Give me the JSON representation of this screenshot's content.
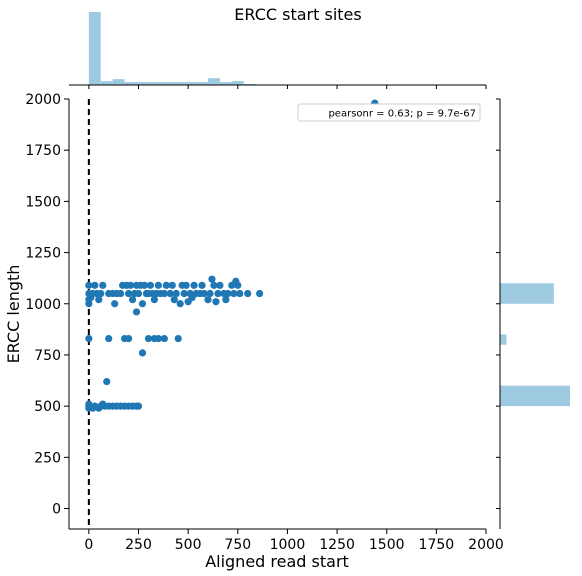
{
  "chart_data": {
    "type": "scatter",
    "title": "ERCC start sites",
    "xlabel": "Aligned read start",
    "ylabel": "ERCC length",
    "xlim": [
      -100,
      2000
    ],
    "ylim": [
      -100,
      2000
    ],
    "xticks": [
      0,
      250,
      500,
      750,
      1000,
      1250,
      1500,
      1750,
      2000
    ],
    "yticks": [
      0,
      250,
      500,
      750,
      1000,
      1250,
      1500,
      1750,
      2000
    ],
    "annotation": "pearsonr = 0.63; p = 9.7e-67",
    "reference_line": {
      "orientation": "vertical",
      "x": 0,
      "style": "dashed",
      "color": "#000000"
    },
    "grid": false,
    "legend_position": "top-right",
    "point_color": "#1f77b4",
    "marginal_color": "#9ecae1",
    "points": [
      [
        0,
        1000
      ],
      [
        0,
        1020
      ],
      [
        0,
        1050
      ],
      [
        0,
        1090
      ],
      [
        10,
        1030
      ],
      [
        20,
        1050
      ],
      [
        30,
        1090
      ],
      [
        40,
        1050
      ],
      [
        50,
        1020
      ],
      [
        60,
        1050
      ],
      [
        70,
        1090
      ],
      [
        100,
        1050
      ],
      [
        120,
        1050
      ],
      [
        130,
        1000
      ],
      [
        140,
        1050
      ],
      [
        160,
        1050
      ],
      [
        170,
        1090
      ],
      [
        190,
        1090
      ],
      [
        200,
        1050
      ],
      [
        210,
        1090
      ],
      [
        220,
        1020
      ],
      [
        230,
        1050
      ],
      [
        240,
        1090
      ],
      [
        250,
        1050
      ],
      [
        260,
        1090
      ],
      [
        270,
        1000
      ],
      [
        280,
        1090
      ],
      [
        290,
        1050
      ],
      [
        300,
        1050
      ],
      [
        310,
        1090
      ],
      [
        320,
        1050
      ],
      [
        330,
        1020
      ],
      [
        340,
        1050
      ],
      [
        350,
        1090
      ],
      [
        360,
        1050
      ],
      [
        380,
        1050
      ],
      [
        390,
        1090
      ],
      [
        410,
        1050
      ],
      [
        420,
        1090
      ],
      [
        430,
        1020
      ],
      [
        440,
        1050
      ],
      [
        460,
        1000
      ],
      [
        470,
        1090
      ],
      [
        480,
        1050
      ],
      [
        490,
        1090
      ],
      [
        500,
        1010
      ],
      [
        510,
        1050
      ],
      [
        520,
        1030
      ],
      [
        530,
        1090
      ],
      [
        540,
        1050
      ],
      [
        560,
        1050
      ],
      [
        570,
        1090
      ],
      [
        580,
        1050
      ],
      [
        600,
        1020
      ],
      [
        610,
        1050
      ],
      [
        620,
        1120
      ],
      [
        630,
        1090
      ],
      [
        640,
        1010
      ],
      [
        650,
        1050
      ],
      [
        660,
        1090
      ],
      [
        680,
        1050
      ],
      [
        690,
        1020
      ],
      [
        700,
        1050
      ],
      [
        720,
        1090
      ],
      [
        730,
        1050
      ],
      [
        740,
        1110
      ],
      [
        750,
        1090
      ],
      [
        760,
        1050
      ],
      [
        800,
        1050
      ],
      [
        860,
        1050
      ],
      [
        240,
        960
      ],
      [
        0,
        830
      ],
      [
        100,
        830
      ],
      [
        180,
        830
      ],
      [
        200,
        830
      ],
      [
        270,
        760
      ],
      [
        300,
        830
      ],
      [
        330,
        830
      ],
      [
        350,
        830
      ],
      [
        380,
        830
      ],
      [
        450,
        830
      ],
      [
        90,
        620
      ],
      [
        0,
        490
      ],
      [
        0,
        500
      ],
      [
        0,
        510
      ],
      [
        20,
        490
      ],
      [
        30,
        500
      ],
      [
        50,
        490
      ],
      [
        60,
        500
      ],
      [
        70,
        510
      ],
      [
        80,
        500
      ],
      [
        100,
        500
      ],
      [
        120,
        500
      ],
      [
        140,
        500
      ],
      [
        160,
        500
      ],
      [
        180,
        500
      ],
      [
        200,
        500
      ],
      [
        220,
        500
      ],
      [
        240,
        500
      ],
      [
        250,
        500
      ],
      [
        1440,
        1980
      ]
    ],
    "marginal_x": {
      "bins": [
        [
          0,
          60
        ],
        [
          60,
          120
        ],
        [
          120,
          180
        ],
        [
          180,
          240
        ],
        [
          240,
          300
        ],
        [
          300,
          360
        ],
        [
          360,
          420
        ],
        [
          420,
          480
        ],
        [
          480,
          540
        ],
        [
          540,
          600
        ],
        [
          600,
          660
        ],
        [
          660,
          720
        ],
        [
          720,
          780
        ],
        [
          780,
          840
        ],
        [
          840,
          900
        ]
      ],
      "counts": [
        150,
        8,
        12,
        6,
        6,
        6,
        6,
        6,
        6,
        6,
        14,
        6,
        8,
        2,
        1
      ]
    },
    "marginal_y": {
      "bins": [
        [
          1000,
          1100
        ],
        [
          800,
          850
        ],
        [
          500,
          600
        ]
      ],
      "counts": [
        100,
        12,
        130
      ]
    }
  }
}
